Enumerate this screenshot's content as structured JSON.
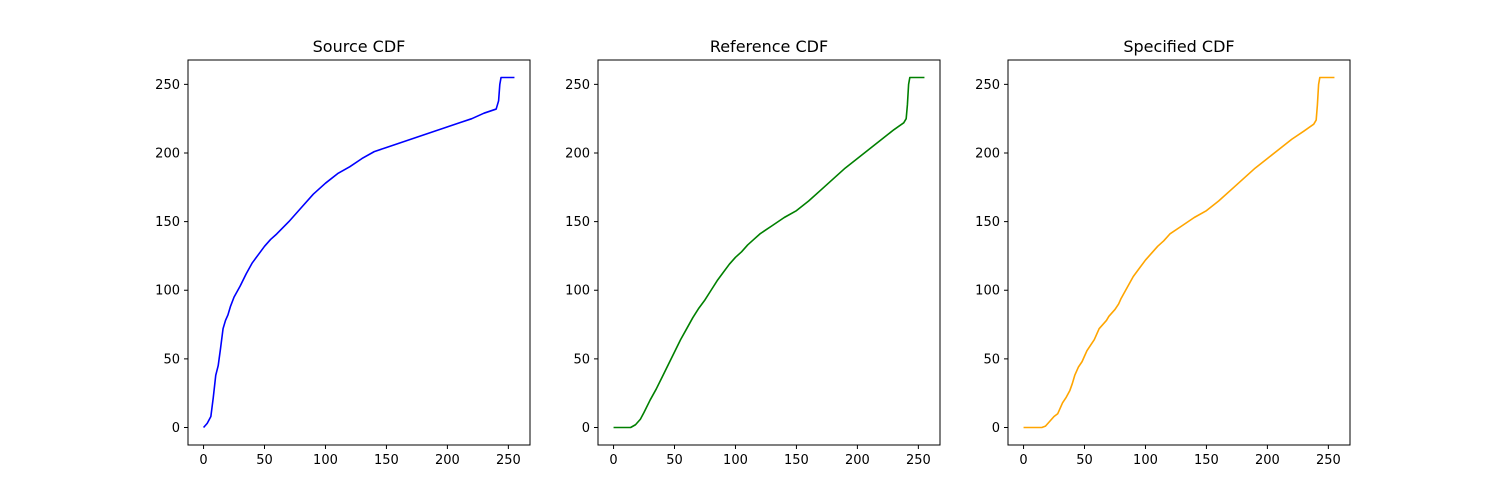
{
  "chart_data": [
    {
      "type": "line",
      "title": "Source CDF",
      "xlabel": "",
      "ylabel": "",
      "xlim": [
        -12.75,
        267.75
      ],
      "ylim": [
        -12.75,
        267.75
      ],
      "xticks": [
        0,
        50,
        100,
        150,
        200,
        250
      ],
      "yticks": [
        0,
        50,
        100,
        150,
        200,
        250
      ],
      "grid": false,
      "series": [
        {
          "color": "#0000ff",
          "x": [
            0,
            3,
            6,
            8,
            10,
            12,
            14,
            16,
            18,
            20,
            22,
            25,
            30,
            35,
            40,
            45,
            50,
            55,
            60,
            70,
            80,
            90,
            100,
            110,
            120,
            130,
            140,
            150,
            160,
            170,
            180,
            190,
            200,
            210,
            220,
            230,
            240,
            242,
            243,
            244,
            245,
            250,
            255
          ],
          "y": [
            0,
            3,
            8,
            22,
            38,
            45,
            58,
            72,
            78,
            82,
            88,
            95,
            103,
            112,
            120,
            126,
            132,
            137,
            141,
            150,
            160,
            170,
            178,
            185,
            190,
            196,
            201,
            204,
            207,
            210,
            213,
            216,
            219,
            222,
            225,
            229,
            232,
            238,
            250,
            255,
            255,
            255,
            255
          ]
        }
      ]
    },
    {
      "type": "line",
      "title": "Reference CDF",
      "xlabel": "",
      "ylabel": "",
      "xlim": [
        -12.75,
        267.75
      ],
      "ylim": [
        -12.75,
        267.75
      ],
      "xticks": [
        0,
        50,
        100,
        150,
        200,
        250
      ],
      "yticks": [
        0,
        50,
        100,
        150,
        200,
        250
      ],
      "grid": false,
      "series": [
        {
          "color": "#008000",
          "x": [
            0,
            5,
            10,
            14,
            16,
            18,
            20,
            22,
            25,
            30,
            35,
            40,
            45,
            50,
            55,
            60,
            65,
            70,
            75,
            80,
            85,
            90,
            95,
            100,
            105,
            110,
            115,
            120,
            125,
            130,
            140,
            150,
            160,
            170,
            180,
            190,
            200,
            210,
            220,
            230,
            238,
            240,
            241,
            242,
            243,
            245,
            250,
            255
          ],
          "y": [
            0,
            0,
            0,
            0,
            1,
            2,
            4,
            6,
            11,
            20,
            28,
            37,
            46,
            55,
            64,
            72,
            80,
            87,
            93,
            100,
            107,
            113,
            119,
            124,
            128,
            133,
            137,
            141,
            144,
            147,
            153,
            158,
            165,
            173,
            181,
            189,
            196,
            203,
            210,
            217,
            222,
            225,
            235,
            250,
            255,
            255,
            255,
            255
          ]
        }
      ]
    },
    {
      "type": "line",
      "title": "Specified CDF",
      "xlabel": "",
      "ylabel": "",
      "xlim": [
        -12.75,
        267.75
      ],
      "ylim": [
        -12.75,
        267.75
      ],
      "xticks": [
        0,
        50,
        100,
        150,
        200,
        250
      ],
      "yticks": [
        0,
        50,
        100,
        150,
        200,
        250
      ],
      "grid": false,
      "series": [
        {
          "color": "#ffa500",
          "x": [
            0,
            5,
            10,
            15,
            18,
            20,
            22,
            25,
            28,
            30,
            32,
            35,
            38,
            40,
            42,
            45,
            48,
            50,
            52,
            55,
            58,
            60,
            62,
            65,
            68,
            70,
            72,
            75,
            78,
            80,
            85,
            90,
            95,
            100,
            105,
            110,
            115,
            120,
            130,
            140,
            150,
            160,
            170,
            180,
            190,
            200,
            210,
            220,
            230,
            238,
            240,
            241,
            242,
            243,
            245,
            250,
            255
          ],
          "y": [
            0,
            0,
            0,
            0,
            1,
            3,
            5,
            8,
            10,
            14,
            18,
            22,
            27,
            32,
            38,
            44,
            48,
            52,
            56,
            60,
            64,
            68,
            72,
            75,
            78,
            81,
            83,
            86,
            90,
            94,
            102,
            110,
            116,
            122,
            127,
            132,
            136,
            141,
            147,
            153,
            158,
            165,
            173,
            181,
            189,
            196,
            203,
            210,
            216,
            221,
            224,
            235,
            250,
            255,
            255,
            255,
            255
          ]
        }
      ]
    }
  ]
}
